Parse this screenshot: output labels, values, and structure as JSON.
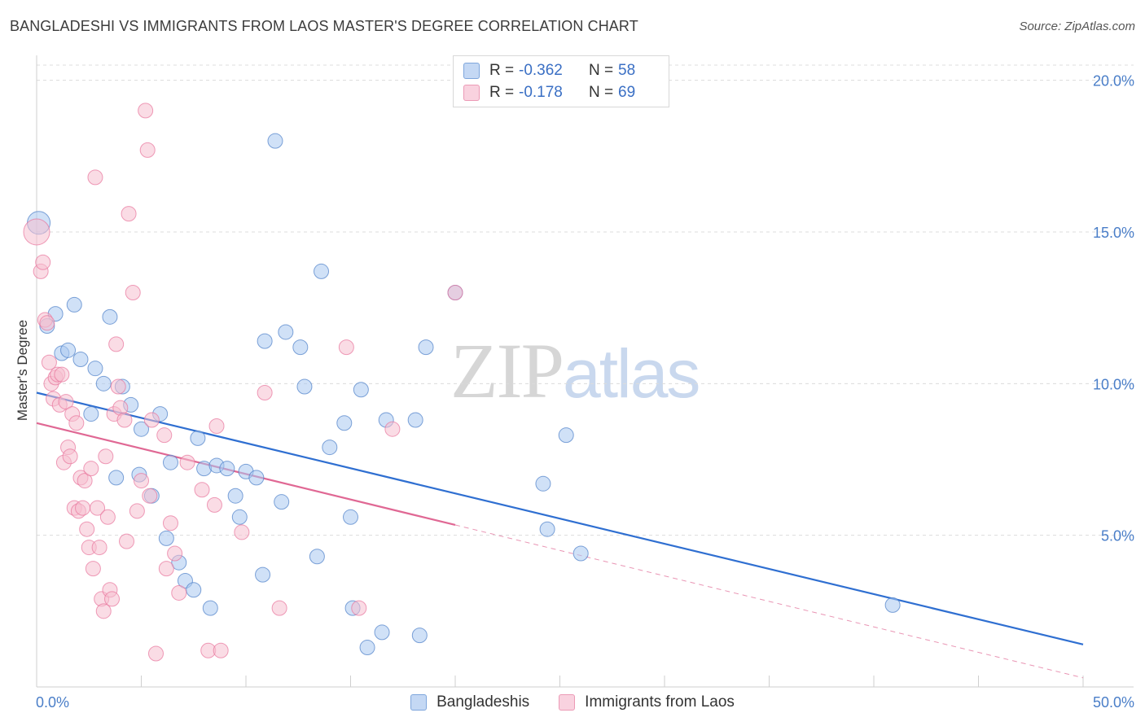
{
  "header": {
    "title": "BANGLADESHI VS IMMIGRANTS FROM LAOS MASTER'S DEGREE CORRELATION CHART",
    "source": "Source: ZipAtlas.com"
  },
  "watermark": {
    "zip": "ZIP",
    "atlas": "atlas"
  },
  "legend_top": {
    "rows": [
      {
        "label": "R = ",
        "r": "-0.362",
        "n_label": "N = ",
        "n": "58",
        "color": "#aac8f0"
      },
      {
        "label": "R = ",
        "r": "-0.178",
        "n_label": "N = ",
        "n": "69",
        "color": "#f6bfd0"
      }
    ]
  },
  "legend_bottom": {
    "items": [
      {
        "label": "Bangladeshis",
        "color": "#aac8f0"
      },
      {
        "label": "Immigrants from Laos",
        "color": "#f6bfd0"
      }
    ]
  },
  "chart_data": {
    "type": "scatter",
    "title": "BANGLADESHI VS IMMIGRANTS FROM LAOS MASTER'S DEGREE CORRELATION CHART",
    "xlabel": "",
    "ylabel": "Master's Degree",
    "xlim": [
      0,
      50
    ],
    "ylim": [
      0,
      20.5
    ],
    "x_tick_labels": [
      "0.0%",
      "50.0%"
    ],
    "y_ticks": [
      5,
      10,
      15,
      20
    ],
    "y_tick_labels": [
      "5.0%",
      "10.0%",
      "15.0%",
      "20.0%"
    ],
    "grid": true,
    "series": [
      {
        "name": "Bangladeshis",
        "color": "#4a7ec8",
        "fill": "#aac8f0",
        "trend": {
          "x": [
            0,
            50
          ],
          "y": [
            9.7,
            1.4
          ],
          "dashed_from": null,
          "color": "#2f6fd1"
        },
        "points": [
          {
            "x": 0.1,
            "y": 15.3,
            "s": 14
          },
          {
            "x": 0.5,
            "y": 11.9
          },
          {
            "x": 0.9,
            "y": 12.3
          },
          {
            "x": 1.2,
            "y": 11.0
          },
          {
            "x": 1.5,
            "y": 11.1
          },
          {
            "x": 1.8,
            "y": 12.6
          },
          {
            "x": 2.1,
            "y": 10.8
          },
          {
            "x": 2.6,
            "y": 9.0
          },
          {
            "x": 2.8,
            "y": 10.5
          },
          {
            "x": 3.2,
            "y": 10.0
          },
          {
            "x": 3.5,
            "y": 12.2
          },
          {
            "x": 3.8,
            "y": 6.9
          },
          {
            "x": 4.1,
            "y": 9.9
          },
          {
            "x": 4.5,
            "y": 9.3
          },
          {
            "x": 4.9,
            "y": 7.0
          },
          {
            "x": 5.0,
            "y": 8.5
          },
          {
            "x": 5.5,
            "y": 6.3
          },
          {
            "x": 5.9,
            "y": 9.0
          },
          {
            "x": 6.2,
            "y": 4.9
          },
          {
            "x": 6.4,
            "y": 7.4
          },
          {
            "x": 6.8,
            "y": 4.1
          },
          {
            "x": 7.1,
            "y": 3.5
          },
          {
            "x": 7.5,
            "y": 3.2
          },
          {
            "x": 7.7,
            "y": 8.2
          },
          {
            "x": 8.0,
            "y": 7.2
          },
          {
            "x": 8.3,
            "y": 2.6
          },
          {
            "x": 8.6,
            "y": 7.3
          },
          {
            "x": 9.1,
            "y": 7.2
          },
          {
            "x": 9.5,
            "y": 6.3
          },
          {
            "x": 9.7,
            "y": 5.6
          },
          {
            "x": 10.0,
            "y": 7.1
          },
          {
            "x": 10.5,
            "y": 6.9
          },
          {
            "x": 10.8,
            "y": 3.7
          },
          {
            "x": 10.9,
            "y": 11.4
          },
          {
            "x": 11.4,
            "y": 18.0
          },
          {
            "x": 11.7,
            "y": 6.1
          },
          {
            "x": 11.9,
            "y": 11.7
          },
          {
            "x": 12.6,
            "y": 11.2
          },
          {
            "x": 12.8,
            "y": 9.9
          },
          {
            "x": 13.4,
            "y": 4.3
          },
          {
            "x": 13.6,
            "y": 13.7
          },
          {
            "x": 14.0,
            "y": 7.9
          },
          {
            "x": 14.7,
            "y": 8.7
          },
          {
            "x": 15.0,
            "y": 5.6
          },
          {
            "x": 15.1,
            "y": 2.6
          },
          {
            "x": 15.5,
            "y": 9.8
          },
          {
            "x": 15.8,
            "y": 1.3
          },
          {
            "x": 16.5,
            "y": 1.8
          },
          {
            "x": 16.7,
            "y": 8.8
          },
          {
            "x": 18.1,
            "y": 8.8
          },
          {
            "x": 18.3,
            "y": 1.7
          },
          {
            "x": 18.6,
            "y": 11.2
          },
          {
            "x": 20.0,
            "y": 13.0
          },
          {
            "x": 24.2,
            "y": 6.7
          },
          {
            "x": 24.4,
            "y": 5.2
          },
          {
            "x": 25.3,
            "y": 8.3
          },
          {
            "x": 26.0,
            "y": 4.4
          },
          {
            "x": 40.9,
            "y": 2.7
          }
        ]
      },
      {
        "name": "Immigrants from Laos",
        "color": "#e8739b",
        "fill": "#f6bfd0",
        "trend": {
          "x": [
            0,
            50
          ],
          "y": [
            8.7,
            0.3
          ],
          "dashed_from": 20.0,
          "color": "#e06894"
        },
        "points": [
          {
            "x": 0.0,
            "y": 15.0,
            "s": 16
          },
          {
            "x": 0.2,
            "y": 13.7
          },
          {
            "x": 0.3,
            "y": 14.0
          },
          {
            "x": 0.4,
            "y": 12.1
          },
          {
            "x": 0.5,
            "y": 12.0
          },
          {
            "x": 0.6,
            "y": 10.7
          },
          {
            "x": 0.7,
            "y": 10.0
          },
          {
            "x": 0.8,
            "y": 9.5
          },
          {
            "x": 0.9,
            "y": 10.2
          },
          {
            "x": 1.0,
            "y": 10.3
          },
          {
            "x": 1.1,
            "y": 9.3
          },
          {
            "x": 1.2,
            "y": 10.3
          },
          {
            "x": 1.3,
            "y": 7.4
          },
          {
            "x": 1.4,
            "y": 9.4
          },
          {
            "x": 1.5,
            "y": 7.9
          },
          {
            "x": 1.6,
            "y": 7.6
          },
          {
            "x": 1.7,
            "y": 9.0
          },
          {
            "x": 1.8,
            "y": 5.9
          },
          {
            "x": 1.9,
            "y": 8.7
          },
          {
            "x": 2.0,
            "y": 5.8
          },
          {
            "x": 2.1,
            "y": 6.9
          },
          {
            "x": 2.2,
            "y": 5.9
          },
          {
            "x": 2.3,
            "y": 6.8
          },
          {
            "x": 2.4,
            "y": 5.2
          },
          {
            "x": 2.5,
            "y": 4.6
          },
          {
            "x": 2.6,
            "y": 7.2
          },
          {
            "x": 2.7,
            "y": 3.9
          },
          {
            "x": 2.8,
            "y": 16.8
          },
          {
            "x": 2.9,
            "y": 5.9
          },
          {
            "x": 3.0,
            "y": 4.6
          },
          {
            "x": 3.1,
            "y": 2.9
          },
          {
            "x": 3.2,
            "y": 2.5
          },
          {
            "x": 3.3,
            "y": 7.6
          },
          {
            "x": 3.4,
            "y": 5.6
          },
          {
            "x": 3.5,
            "y": 3.2
          },
          {
            "x": 3.6,
            "y": 2.9
          },
          {
            "x": 3.7,
            "y": 9.0
          },
          {
            "x": 3.8,
            "y": 11.3
          },
          {
            "x": 3.9,
            "y": 9.9
          },
          {
            "x": 4.0,
            "y": 9.2
          },
          {
            "x": 4.2,
            "y": 8.8
          },
          {
            "x": 4.3,
            "y": 4.8
          },
          {
            "x": 4.4,
            "y": 15.6
          },
          {
            "x": 4.6,
            "y": 13.0
          },
          {
            "x": 4.8,
            "y": 5.8
          },
          {
            "x": 5.0,
            "y": 6.8
          },
          {
            "x": 5.2,
            "y": 19.0
          },
          {
            "x": 5.3,
            "y": 17.7
          },
          {
            "x": 5.4,
            "y": 6.3
          },
          {
            "x": 5.5,
            "y": 8.8
          },
          {
            "x": 5.7,
            "y": 1.1
          },
          {
            "x": 6.1,
            "y": 8.3
          },
          {
            "x": 6.2,
            "y": 3.9
          },
          {
            "x": 6.4,
            "y": 5.4
          },
          {
            "x": 6.6,
            "y": 4.4
          },
          {
            "x": 6.8,
            "y": 3.1
          },
          {
            "x": 7.2,
            "y": 7.4
          },
          {
            "x": 7.9,
            "y": 6.5
          },
          {
            "x": 8.2,
            "y": 1.2
          },
          {
            "x": 8.5,
            "y": 6.0
          },
          {
            "x": 8.6,
            "y": 8.6
          },
          {
            "x": 8.8,
            "y": 1.2
          },
          {
            "x": 9.8,
            "y": 5.1
          },
          {
            "x": 10.9,
            "y": 9.7
          },
          {
            "x": 11.6,
            "y": 2.6
          },
          {
            "x": 14.8,
            "y": 11.2
          },
          {
            "x": 15.4,
            "y": 2.6
          },
          {
            "x": 17.0,
            "y": 8.5
          },
          {
            "x": 20.0,
            "y": 13.0
          }
        ]
      }
    ]
  }
}
